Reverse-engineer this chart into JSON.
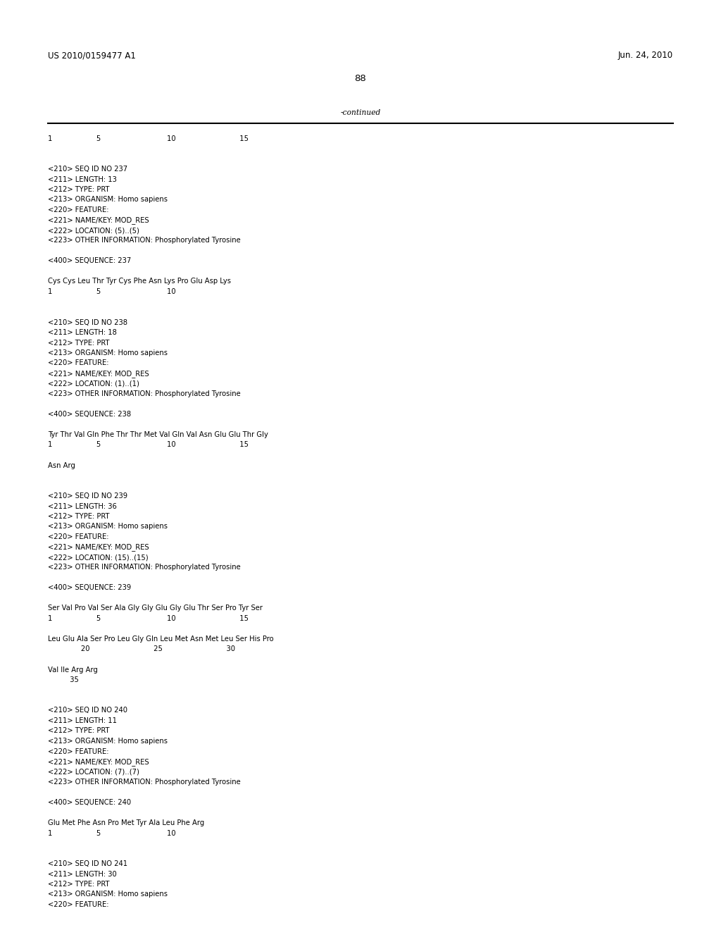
{
  "background_color": "#ffffff",
  "text_color": "#000000",
  "header_left": "US 2010/0159477 A1",
  "header_right": "Jun. 24, 2010",
  "page_number": "88",
  "continued_label": "-continued",
  "font_size_header": 8.5,
  "font_size_body": 7.2,
  "font_size_page": 9.5,
  "body_lines": [
    "<210> SEQ ID NO 237",
    "<211> LENGTH: 13",
    "<212> TYPE: PRT",
    "<213> ORGANISM: Homo sapiens",
    "<220> FEATURE:",
    "<221> NAME/KEY: MOD_RES",
    "<222> LOCATION: (5)..(5)",
    "<223> OTHER INFORMATION: Phosphorylated Tyrosine",
    "",
    "<400> SEQUENCE: 237",
    "",
    "Cys Cys Leu Thr Tyr Cys Phe Asn Lys Pro Glu Asp Lys",
    "1                    5                              10",
    "",
    "",
    "<210> SEQ ID NO 238",
    "<211> LENGTH: 18",
    "<212> TYPE: PRT",
    "<213> ORGANISM: Homo sapiens",
    "<220> FEATURE:",
    "<221> NAME/KEY: MOD_RES",
    "<222> LOCATION: (1)..(1)",
    "<223> OTHER INFORMATION: Phosphorylated Tyrosine",
    "",
    "<400> SEQUENCE: 238",
    "",
    "Tyr Thr Val Gln Phe Thr Thr Met Val Gln Val Asn Glu Glu Thr Gly",
    "1                    5                              10                             15",
    "",
    "Asn Arg",
    "",
    "",
    "<210> SEQ ID NO 239",
    "<211> LENGTH: 36",
    "<212> TYPE: PRT",
    "<213> ORGANISM: Homo sapiens",
    "<220> FEATURE:",
    "<221> NAME/KEY: MOD_RES",
    "<222> LOCATION: (15)..(15)",
    "<223> OTHER INFORMATION: Phosphorylated Tyrosine",
    "",
    "<400> SEQUENCE: 239",
    "",
    "Ser Val Pro Val Ser Ala Gly Gly Glu Gly Glu Thr Ser Pro Tyr Ser",
    "1                    5                              10                             15",
    "",
    "Leu Glu Ala Ser Pro Leu Gly Gln Leu Met Asn Met Leu Ser His Pro",
    "               20                             25                             30",
    "",
    "Val Ile Arg Arg",
    "          35",
    "",
    "",
    "<210> SEQ ID NO 240",
    "<211> LENGTH: 11",
    "<212> TYPE: PRT",
    "<213> ORGANISM: Homo sapiens",
    "<220> FEATURE:",
    "<221> NAME/KEY: MOD_RES",
    "<222> LOCATION: (7)..(7)",
    "<223> OTHER INFORMATION: Phosphorylated Tyrosine",
    "",
    "<400> SEQUENCE: 240",
    "",
    "Glu Met Phe Asn Pro Met Tyr Ala Leu Phe Arg",
    "1                    5                              10",
    "",
    "",
    "<210> SEQ ID NO 241",
    "<211> LENGTH: 30",
    "<212> TYPE: PRT",
    "<213> ORGANISM: Homo sapiens",
    "<220> FEATURE:"
  ],
  "ruler": "1                    5                              10                             15"
}
